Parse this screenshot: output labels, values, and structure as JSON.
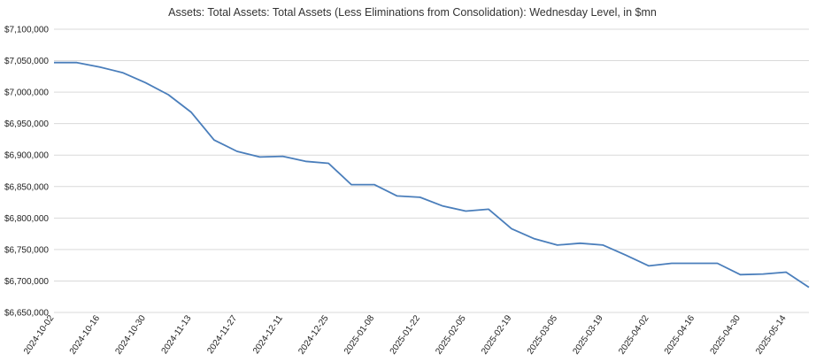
{
  "chart_data": {
    "type": "line",
    "title": "Assets: Total Assets: Total Assets (Less Eliminations from Consolidation): Wednesday Level, in $mn",
    "xlabel": "",
    "ylabel": "",
    "ylim": [
      6650000,
      7100000
    ],
    "yticks": [
      {
        "value": 6650000,
        "label": "$6,650,000"
      },
      {
        "value": 6700000,
        "label": "$6,700,000"
      },
      {
        "value": 6750000,
        "label": "$6,750,000"
      },
      {
        "value": 6800000,
        "label": "$6,800,000"
      },
      {
        "value": 6850000,
        "label": "$6,850,000"
      },
      {
        "value": 6900000,
        "label": "$6,900,000"
      },
      {
        "value": 6950000,
        "label": "$6,950,000"
      },
      {
        "value": 7000000,
        "label": "$7,000,000"
      },
      {
        "value": 7050000,
        "label": "$7,050,000"
      },
      {
        "value": 7100000,
        "label": "$7,100,000"
      }
    ],
    "xtick_labels": [
      "2024-10-02",
      "2024-10-16",
      "2024-10-30",
      "2024-11-13",
      "2024-11-27",
      "2024-12-11",
      "2024-12-25",
      "2025-01-08",
      "2025-01-22",
      "2025-02-05",
      "2025-02-19",
      "2025-03-05",
      "2025-03-19",
      "2025-04-02",
      "2025-04-16",
      "2025-04-30",
      "2025-05-14"
    ],
    "grid": true,
    "legend": "none",
    "series": [
      {
        "color": "#4a7ebb",
        "x": [
          "2024-10-02",
          "2024-10-09",
          "2024-10-16",
          "2024-10-23",
          "2024-10-30",
          "2024-11-06",
          "2024-11-13",
          "2024-11-20",
          "2024-11-27",
          "2024-12-04",
          "2024-12-11",
          "2024-12-18",
          "2024-12-25",
          "2025-01-01",
          "2025-01-08",
          "2025-01-15",
          "2025-01-22",
          "2025-01-29",
          "2025-02-05",
          "2025-02-12",
          "2025-02-19",
          "2025-02-26",
          "2025-03-05",
          "2025-03-12",
          "2025-03-19",
          "2025-03-26",
          "2025-04-02",
          "2025-04-09",
          "2025-04-16",
          "2025-04-23",
          "2025-04-30",
          "2025-05-07",
          "2025-05-14",
          "2025-05-21"
        ],
        "values": [
          7047000,
          7047000,
          7040000,
          7031000,
          7015000,
          6996000,
          6968000,
          6924000,
          6906000,
          6897000,
          6898000,
          6890000,
          6887000,
          6853000,
          6853000,
          6835000,
          6833000,
          6819000,
          6811000,
          6814000,
          6783000,
          6767000,
          6757000,
          6760000,
          6757000,
          6741000,
          6724000,
          6728000,
          6728000,
          6728000,
          6710000,
          6711000,
          6714000,
          6690000
        ]
      }
    ]
  }
}
